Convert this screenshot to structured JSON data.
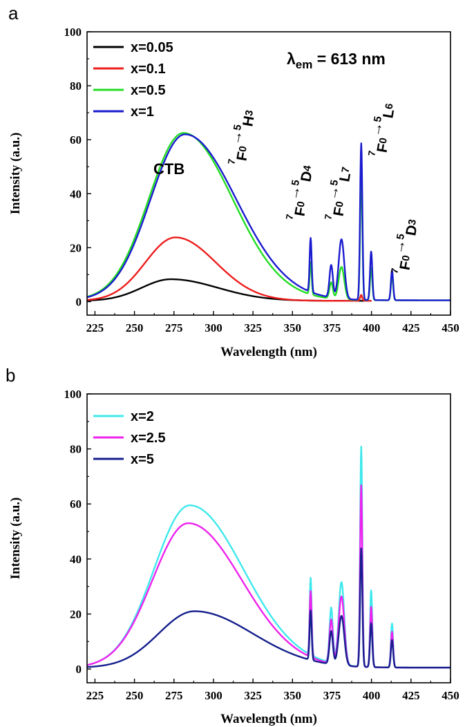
{
  "chart_data": [
    {
      "type": "line",
      "panel_label": "a",
      "xlabel": "Wavelength (nm)",
      "ylabel": "Intensity (a.u.)",
      "xlim": [
        220,
        450
      ],
      "ylim": [
        -5,
        100
      ],
      "xticks": [
        225,
        250,
        275,
        300,
        325,
        350,
        375,
        400,
        425,
        450
      ],
      "yticks": [
        0,
        20,
        40,
        60,
        80,
        100
      ],
      "legend_position": "top-left",
      "annotations": {
        "lambda_symbol": "λ",
        "lambda_sub": "em",
        "lambda_value": " = 613 nm",
        "ctb": "CTB",
        "transitions": [
          {
            "sup1": "7",
            "base1": "F",
            "sub1": "0",
            "arrow": "→",
            "sup2": "5",
            "base2": "H",
            "sub2": "3"
          },
          {
            "sup1": "7",
            "base1": "F",
            "sub1": "0",
            "arrow": "→",
            "sup2": "5",
            "base2": "D",
            "sub2": "4"
          },
          {
            "sup1": "7",
            "base1": "F",
            "sub1": "0",
            "arrow": "→",
            "sup2": "5",
            "base2": "L",
            "sub2": "7"
          },
          {
            "sup1": "7",
            "base1": "F",
            "sub1": "0",
            "arrow": "→",
            "sup2": "5",
            "base2": "L",
            "sub2": "6"
          },
          {
            "sup1": "7",
            "base1": "F",
            "sub1": "0",
            "arrow": "→",
            "sup2": "5",
            "base2": "D",
            "sub2": "3"
          }
        ]
      },
      "series": [
        {
          "name": "x=0.05",
          "color": "#000000",
          "base": {
            "amp": 8,
            "center": 273,
            "wl": 26,
            "wr": 42,
            "floor": 0.3
          },
          "x_end": 400,
          "peaks": []
        },
        {
          "name": "x=0.1",
          "color": "#ee1c1c",
          "base": {
            "amp": 23.5,
            "center": 276,
            "wl": 27,
            "wr": 36,
            "floor": 0.3
          },
          "x_end": 400,
          "peaks": [
            {
              "x": 393.5,
              "h": 2.2,
              "w": 0.9
            }
          ]
        },
        {
          "name": "x=0.5",
          "color": "#22dd22",
          "base": {
            "amp": 62,
            "center": 281,
            "wl": 31,
            "wr": 44,
            "floor": 0.5
          },
          "x_end": 450,
          "peaks": [
            {
              "x": 361.5,
              "h": 12,
              "w": 0.9
            },
            {
              "x": 374.5,
              "h": 6,
              "w": 1.5
            },
            {
              "x": 381,
              "h": 12,
              "w": 2.5
            },
            {
              "x": 393.5,
              "h": 46,
              "w": 1.0
            },
            {
              "x": 399.8,
              "h": 12,
              "w": 1.0
            },
            {
              "x": 413,
              "h": 9,
              "w": 1.0
            }
          ]
        },
        {
          "name": "x=1",
          "color": "#1a1acf",
          "base": {
            "amp": 61.5,
            "center": 282,
            "wl": 31,
            "wr": 46,
            "floor": 0.5
          },
          "x_end": 450,
          "peaks": [
            {
              "x": 361.5,
              "h": 20,
              "w": 0.9
            },
            {
              "x": 374.5,
              "h": 12,
              "w": 1.5
            },
            {
              "x": 381,
              "h": 22,
              "w": 2.5
            },
            {
              "x": 393.5,
              "h": 58,
              "w": 1.0
            },
            {
              "x": 399.8,
              "h": 18,
              "w": 1.0
            },
            {
              "x": 413,
              "h": 11,
              "w": 1.0
            }
          ]
        }
      ]
    },
    {
      "type": "line",
      "panel_label": "b",
      "xlabel": "Wavelength (nm)",
      "ylabel": "Intensity (a.u.)",
      "xlim": [
        220,
        450
      ],
      "ylim": [
        -5,
        100
      ],
      "xticks": [
        225,
        250,
        275,
        300,
        325,
        350,
        375,
        400,
        425,
        450
      ],
      "yticks": [
        0,
        20,
        40,
        60,
        80,
        100
      ],
      "legend_position": "top-left",
      "series": [
        {
          "name": "x=2",
          "color": "#3ee8ec",
          "base": {
            "amp": 59,
            "center": 285,
            "wl": 32,
            "wr": 48,
            "floor": 0.5
          },
          "x_end": 450,
          "peaks": [
            {
              "x": 361.5,
              "h": 28,
              "w": 0.9
            },
            {
              "x": 374.5,
              "h": 20,
              "w": 1.5
            },
            {
              "x": 381,
              "h": 30,
              "w": 2.5
            },
            {
              "x": 393.5,
              "h": 80,
              "w": 1.0
            },
            {
              "x": 399.8,
              "h": 28,
              "w": 1.0
            },
            {
              "x": 413,
              "h": 16,
              "w": 1.0
            }
          ]
        },
        {
          "name": "x=2.5",
          "color": "#ee22ee",
          "base": {
            "amp": 52.5,
            "center": 284,
            "wl": 32,
            "wr": 48,
            "floor": 0.5
          },
          "x_end": 450,
          "peaks": [
            {
              "x": 361.5,
              "h": 24,
              "w": 0.9
            },
            {
              "x": 374.5,
              "h": 16,
              "w": 1.5
            },
            {
              "x": 381,
              "h": 25,
              "w": 2.5
            },
            {
              "x": 393.5,
              "h": 66,
              "w": 1.0
            },
            {
              "x": 399.8,
              "h": 22,
              "w": 1.0
            },
            {
              "x": 413,
              "h": 13,
              "w": 1.0
            }
          ]
        },
        {
          "name": "x=5",
          "color": "#141e8c",
          "base": {
            "amp": 20.5,
            "center": 288,
            "wl": 32,
            "wr": 52,
            "floor": 0.5
          },
          "x_end": 450,
          "peaks": [
            {
              "x": 361.5,
              "h": 18,
              "w": 0.9
            },
            {
              "x": 374.5,
              "h": 12,
              "w": 1.5
            },
            {
              "x": 381,
              "h": 18,
              "w": 2.5
            },
            {
              "x": 393.5,
              "h": 43,
              "w": 1.0
            },
            {
              "x": 399.8,
              "h": 16,
              "w": 1.0
            },
            {
              "x": 413,
              "h": 10,
              "w": 1.0
            }
          ]
        }
      ]
    }
  ]
}
